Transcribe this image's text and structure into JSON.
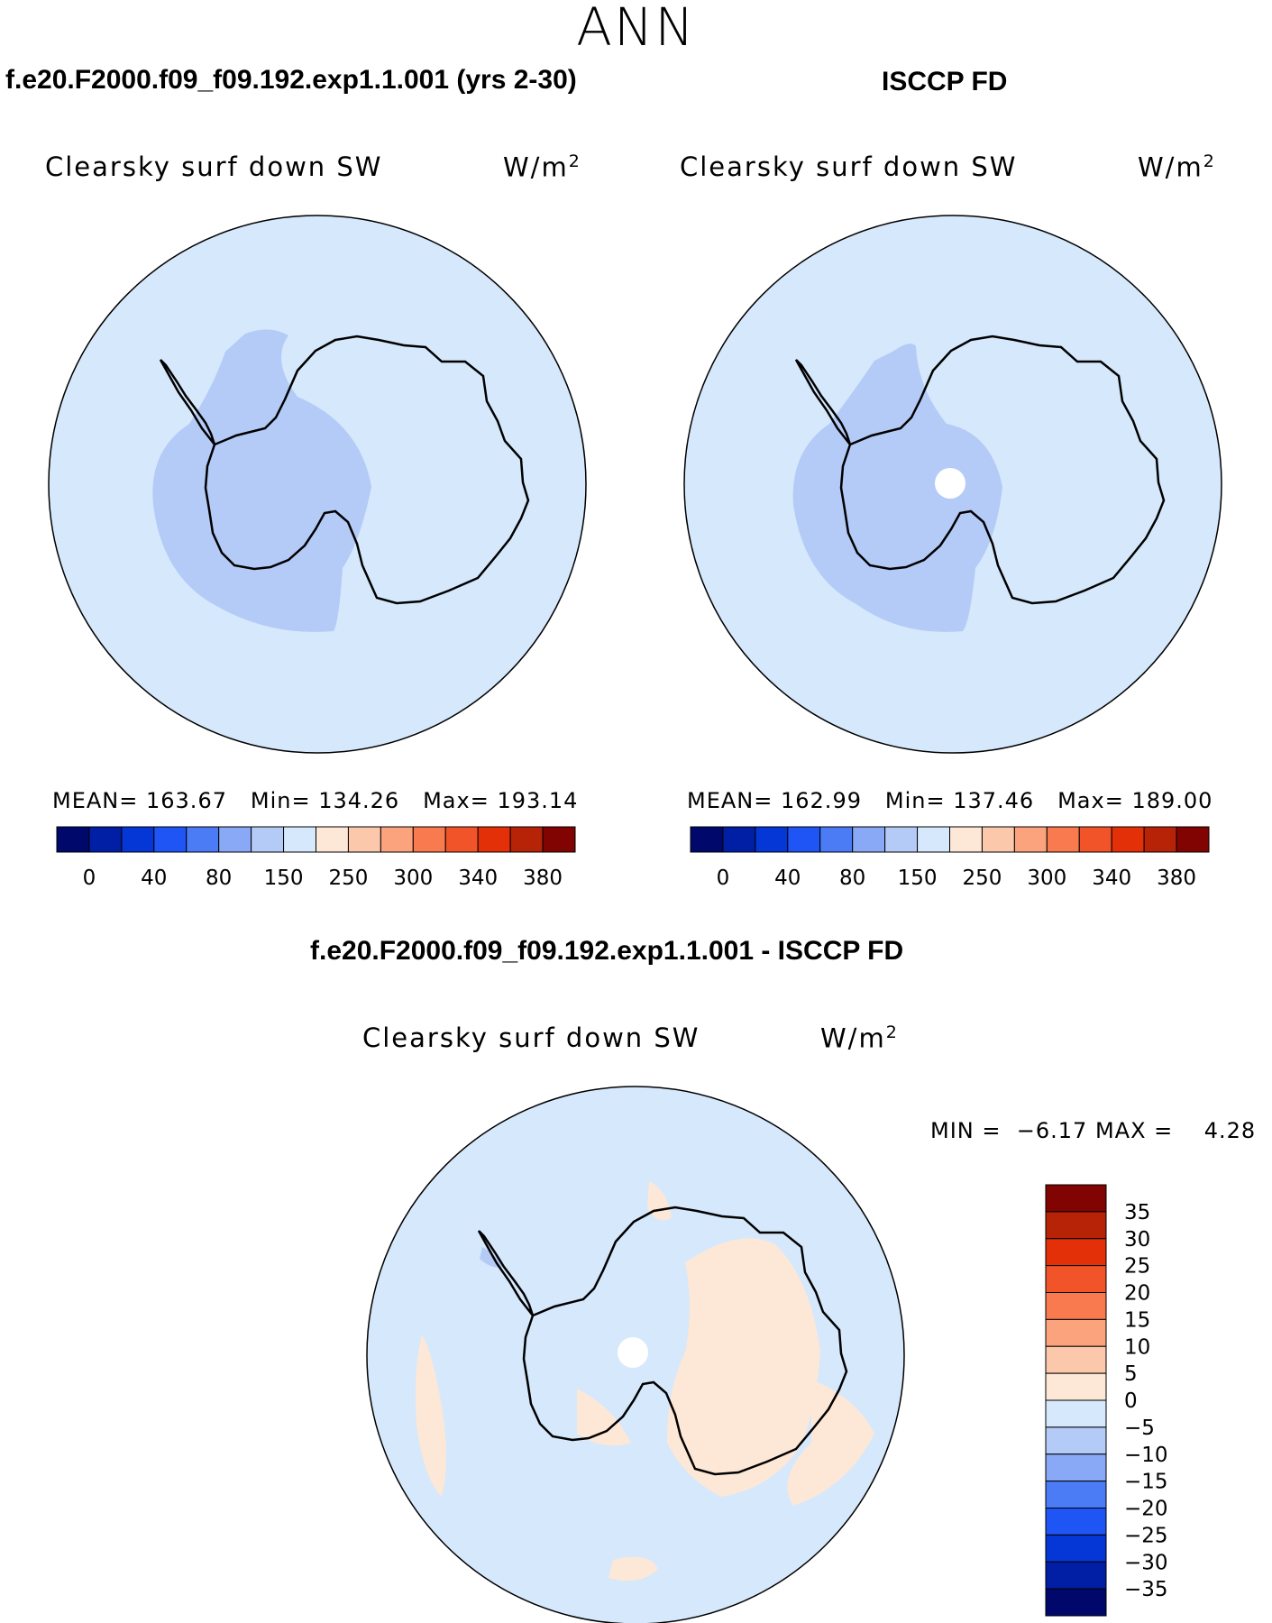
{
  "season": "ANN",
  "colors": {
    "ocean": "#d6e8fb",
    "blue_minus5": "#b4cbf7",
    "cream": "#fde8d7",
    "coast": "#000000"
  },
  "panel_left": {
    "title": "f.e20.F2000.f09_f09.192.exp1.1.001 (yrs 2-30)",
    "variable": "Clearsky surf down SW",
    "units": "W/m",
    "units_sup": "2",
    "stats": {
      "mean_label": "MEAN=",
      "mean": "163.67",
      "min_label": "Min=",
      "min": "134.26",
      "max_label": "Max=",
      "max": "193.14"
    }
  },
  "panel_right": {
    "title": "ISCCP FD",
    "variable": "Clearsky surf down SW",
    "units": "W/m",
    "units_sup": "2",
    "stats": {
      "mean_label": "MEAN=",
      "mean": "162.99",
      "min_label": "Min=",
      "min": "137.46",
      "max_label": "Max=",
      "max": "189.00"
    }
  },
  "panel_diff": {
    "title": "f.e20.F2000.f09_f09.192.exp1.1.001 - ISCCP FD",
    "variable": "Clearsky surf down SW",
    "units": "W/m",
    "units_sup": "2",
    "stats": {
      "min_label": "MIN =",
      "min": "−6.17",
      "max_label": "MAX =",
      "max": "4.28"
    }
  },
  "colorbar_abs": {
    "colors": [
      "#00096b",
      "#001fa4",
      "#0536d6",
      "#1f55f4",
      "#4b7cf6",
      "#89a8f5",
      "#b4cbf7",
      "#d6e8fb",
      "#fde8d7",
      "#fcc8ab",
      "#fba37c",
      "#f87a4e",
      "#f25429",
      "#e33008",
      "#b62306",
      "#820402"
    ],
    "labels": [
      "0",
      "40",
      "80",
      "150",
      "250",
      "300",
      "340",
      "380"
    ]
  },
  "colorbar_diff": {
    "colors": [
      "#820402",
      "#b62306",
      "#e33008",
      "#f25429",
      "#f87a4e",
      "#fba37c",
      "#fcc8ab",
      "#fde8d7",
      "#d6e8fb",
      "#b4cbf7",
      "#89a8f5",
      "#4b7cf6",
      "#1f55f4",
      "#0536d6",
      "#001fa4",
      "#00096b"
    ],
    "labels": [
      "35",
      "30",
      "25",
      "20",
      "15",
      "10",
      "5",
      "0",
      "−5",
      "−10",
      "−15",
      "−20",
      "−25",
      "−30",
      "−35"
    ]
  }
}
